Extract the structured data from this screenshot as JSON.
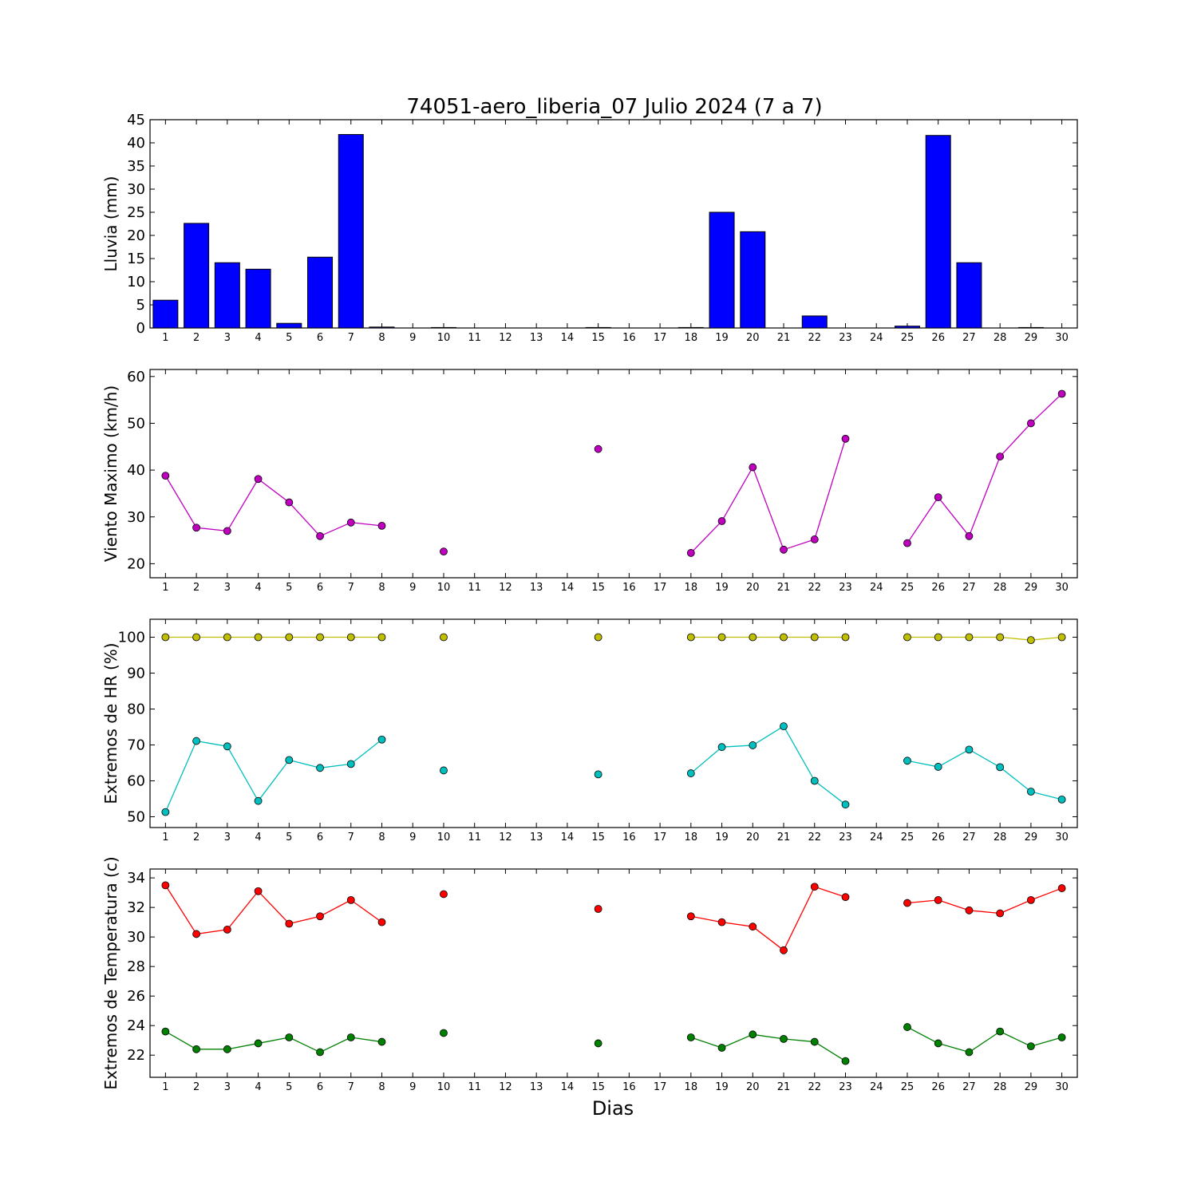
{
  "chart_data": {
    "title": "74051-aero_liberia_07 Julio 2024  (7 a 7)",
    "xlabel": "Dias",
    "x": [
      1,
      2,
      3,
      4,
      5,
      6,
      7,
      8,
      9,
      10,
      11,
      12,
      13,
      14,
      15,
      16,
      17,
      18,
      19,
      20,
      21,
      22,
      23,
      24,
      25,
      26,
      27,
      28,
      29,
      30
    ],
    "panels": [
      {
        "type": "bar",
        "ylabel": "Lluvia (mm)",
        "ylim": [
          0,
          45
        ],
        "yticks": [
          0,
          5,
          10,
          15,
          20,
          25,
          30,
          35,
          40,
          45
        ],
        "series": [
          {
            "color": "#0000ff",
            "values": [
              6.0,
              22.6,
              14.1,
              12.7,
              1.0,
              15.3,
              41.8,
              0.2,
              0,
              0.1,
              0,
              0,
              0,
              0,
              0.1,
              0,
              0,
              0.1,
              25.0,
              20.8,
              0,
              2.6,
              0,
              0,
              0.4,
              41.6,
              14.1,
              0,
              0.1,
              0
            ]
          }
        ]
      },
      {
        "type": "line",
        "ylabel": "Viento Maximo (km/h)",
        "ylim": [
          17,
          61.5
        ],
        "yticks": [
          20,
          30,
          40,
          50,
          60
        ],
        "series": [
          {
            "color": "#bf00bf",
            "values": [
              38.8,
              27.7,
              27.0,
              38.1,
              33.1,
              25.9,
              28.8,
              28.1,
              null,
              22.6,
              null,
              null,
              null,
              null,
              44.5,
              null,
              null,
              22.3,
              29.1,
              40.6,
              23.0,
              25.2,
              46.7,
              null,
              24.4,
              34.2,
              25.9,
              42.9,
              50.0,
              56.3
            ]
          }
        ]
      },
      {
        "type": "line",
        "ylabel": "Extremos de HR (%)",
        "ylim": [
          47,
          105
        ],
        "yticks": [
          50,
          60,
          70,
          80,
          90,
          100
        ],
        "series": [
          {
            "color": "#bfbf00",
            "values": [
              100,
              100,
              100,
              100,
              100,
              100,
              100,
              100,
              null,
              100,
              null,
              null,
              null,
              null,
              100,
              null,
              null,
              100,
              100,
              100,
              100,
              100,
              100,
              null,
              100,
              100,
              100,
              100,
              99.2,
              100
            ]
          },
          {
            "color": "#00bfbf",
            "values": [
              51.3,
              71.1,
              69.6,
              54.4,
              65.8,
              63.6,
              64.7,
              71.5,
              null,
              62.9,
              null,
              null,
              null,
              null,
              61.8,
              null,
              null,
              62.1,
              69.4,
              69.9,
              75.2,
              60.0,
              53.4,
              null,
              65.6,
              63.9,
              68.7,
              63.8,
              57.0,
              54.8
            ]
          }
        ]
      },
      {
        "type": "line",
        "ylabel": "Extremos de Temperatura (c)",
        "ylim": [
          20.5,
          34.6
        ],
        "yticks": [
          22,
          24,
          26,
          28,
          30,
          32,
          34
        ],
        "series": [
          {
            "color": "#ff0000",
            "values": [
              33.5,
              30.2,
              30.5,
              33.1,
              30.9,
              31.4,
              32.5,
              31.0,
              null,
              32.9,
              null,
              null,
              null,
              null,
              31.9,
              null,
              null,
              31.4,
              31.0,
              30.7,
              29.1,
              33.4,
              32.7,
              null,
              32.3,
              32.5,
              31.8,
              31.6,
              32.5,
              33.3
            ]
          },
          {
            "color": "#008000",
            "values": [
              23.6,
              22.4,
              22.4,
              22.8,
              23.2,
              22.2,
              23.2,
              22.9,
              null,
              23.5,
              null,
              null,
              null,
              null,
              22.8,
              null,
              null,
              23.2,
              22.5,
              23.4,
              23.1,
              22.9,
              21.6,
              null,
              23.9,
              22.8,
              22.2,
              23.6,
              22.6,
              23.2
            ]
          }
        ]
      }
    ]
  }
}
